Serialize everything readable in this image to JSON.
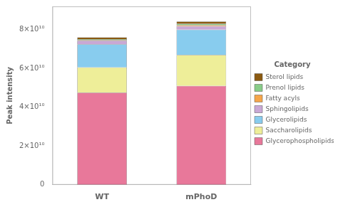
{
  "chart_data": {
    "type": "bar",
    "categories": [
      "WT",
      "mPhoD"
    ],
    "series": [
      {
        "name": "Glycerophospholipids",
        "color": "#E8789A",
        "values": [
          47500000000.0,
          51000000000.0
        ]
      },
      {
        "name": "Saccharolipids",
        "color": "#EEEE99",
        "values": [
          13000000000.0,
          16000000000.0
        ]
      },
      {
        "name": "Glycerolipids",
        "color": "#88CCEE",
        "values": [
          12000000000.0,
          13000000000.0
        ]
      },
      {
        "name": "Sphingolipids",
        "color": "#C9A8D5",
        "values": [
          1800000000.0,
          1800000000.0
        ]
      },
      {
        "name": "Fatty acyls",
        "color": "#F5A54A",
        "values": [
          400000000.0,
          600000000.0
        ]
      },
      {
        "name": "Prenol lipids",
        "color": "#88CC88",
        "values": [
          400000000.0,
          600000000.0
        ]
      },
      {
        "name": "Sterol lipids",
        "color": "#8B5A10",
        "values": [
          900000000.0,
          1200000000.0
        ]
      }
    ],
    "ylabel": "Peak intensity",
    "legend_title": "Category",
    "ylim": [
      0,
      92000000000.0
    ],
    "yticks": [
      0,
      {
        "value": 20000000000.0,
        "label": "2×10¹⁰"
      },
      {
        "value": 40000000000.0,
        "label": "4×10¹⁰"
      },
      {
        "value": 60000000000.0,
        "label": "6×10¹⁰"
      },
      {
        "value": 80000000000.0,
        "label": "8×10¹⁰"
      }
    ],
    "stacked": true,
    "grid": false,
    "legend": "right"
  }
}
